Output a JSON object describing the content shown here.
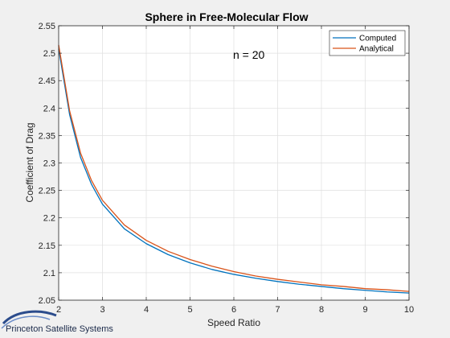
{
  "chart_data": {
    "type": "line",
    "title": "Sphere in Free-Molecular Flow",
    "xlabel": "Speed Ratio",
    "ylabel": "Coefficient of Drag",
    "xlim": [
      2,
      10
    ],
    "ylim": [
      2.05,
      2.55
    ],
    "xticks": [
      2,
      3,
      4,
      5,
      6,
      7,
      8,
      9,
      10
    ],
    "yticks": [
      2.05,
      2.1,
      2.15,
      2.2,
      2.25,
      2.3,
      2.35,
      2.4,
      2.45,
      2.5,
      2.55
    ],
    "xtick_labels": [
      "2",
      "3",
      "4",
      "5",
      "6",
      "7",
      "8",
      "9",
      "10"
    ],
    "ytick_labels": [
      "2.05",
      "2.1",
      "2.15",
      "2.2",
      "2.25",
      "2.3",
      "2.35",
      "2.4",
      "2.45",
      "2.5",
      "2.55"
    ],
    "grid": true,
    "legend_position": "top-right",
    "annotation": "n = 20",
    "series": [
      {
        "name": "Computed",
        "color": "#0072bd",
        "x": [
          2,
          2.25,
          2.5,
          2.75,
          3,
          3.5,
          4,
          4.5,
          5,
          5.5,
          6,
          6.5,
          7,
          7.5,
          8,
          8.5,
          9,
          9.5,
          10
        ],
        "y": [
          2.508,
          2.388,
          2.31,
          2.261,
          2.225,
          2.18,
          2.153,
          2.133,
          2.118,
          2.106,
          2.097,
          2.09,
          2.084,
          2.079,
          2.075,
          2.071,
          2.068,
          2.065,
          2.063
        ]
      },
      {
        "name": "Analytical",
        "color": "#d95319",
        "x": [
          2,
          2.25,
          2.5,
          2.75,
          3,
          3.5,
          4,
          4.5,
          5,
          5.5,
          6,
          6.5,
          7,
          7.5,
          8,
          8.5,
          9,
          9.5,
          10
        ],
        "y": [
          2.515,
          2.395,
          2.318,
          2.268,
          2.232,
          2.187,
          2.159,
          2.139,
          2.124,
          2.112,
          2.102,
          2.094,
          2.088,
          2.083,
          2.078,
          2.075,
          2.071,
          2.069,
          2.066
        ]
      }
    ]
  },
  "footer": {
    "brand": "Princeton Satellite Systems"
  }
}
